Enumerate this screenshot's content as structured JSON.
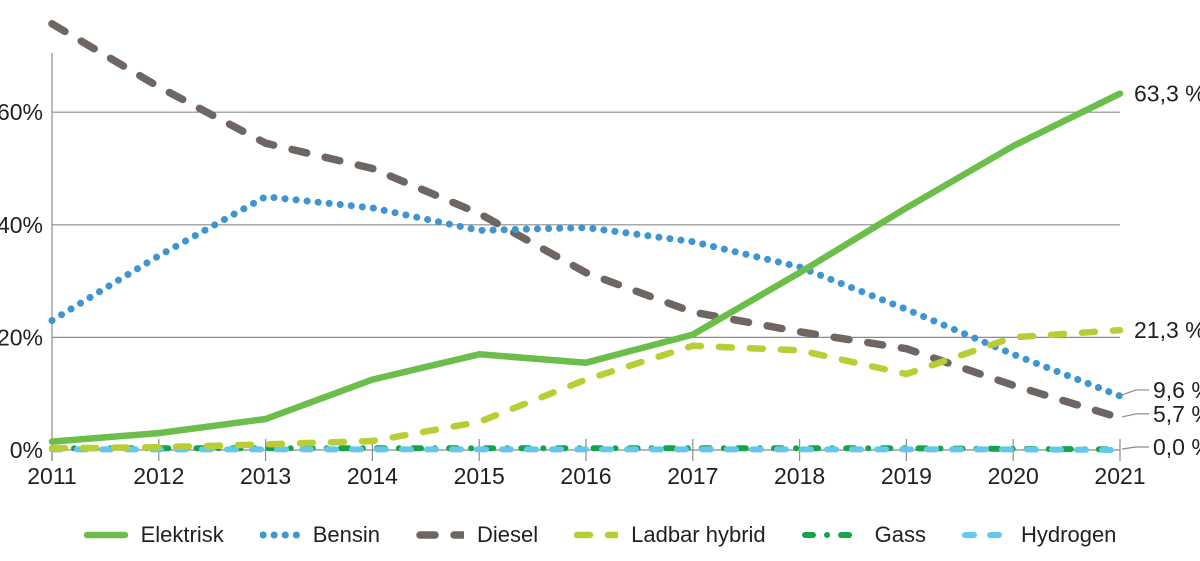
{
  "chart_data": {
    "type": "line",
    "title": "",
    "xlabel": "",
    "ylabel": "",
    "x_labels": [
      "2011",
      "2012",
      "2013",
      "2014",
      "2015",
      "2016",
      "2017",
      "2018",
      "2019",
      "2020",
      "2021"
    ],
    "y_ticks": [
      {
        "value": 0,
        "label": "0%"
      },
      {
        "value": 20,
        "label": "20%"
      },
      {
        "value": 40,
        "label": "40%"
      },
      {
        "value": 60,
        "label": "60%"
      }
    ],
    "ylim": [
      0,
      77
    ],
    "grid": true,
    "legend_position": "bottom",
    "series": [
      {
        "name": "Elektrisk",
        "color": "#6CBE4B",
        "style": "solid",
        "z": 6,
        "end_label": "63,3 %",
        "leader": false,
        "label_dy": 0,
        "values": [
          1.5,
          3.0,
          5.5,
          12.5,
          17.0,
          15.5,
          20.5,
          31.5,
          43.0,
          54.0,
          63.3
        ]
      },
      {
        "name": "Bensin",
        "color": "#3D96D2",
        "style": "dots",
        "z": 4,
        "end_label": "9,6 %",
        "leader": true,
        "label_dy": -6,
        "values": [
          23.0,
          34.5,
          45.0,
          43.0,
          39.0,
          39.5,
          37.0,
          32.5,
          25.0,
          17.0,
          9.6
        ]
      },
      {
        "name": "Diesel",
        "color": "#6E6662",
        "style": "dash-lg",
        "z": 3,
        "end_label": "5,7 %",
        "leader": true,
        "label_dy": -4,
        "values": [
          75.7,
          64.5,
          54.5,
          50.0,
          42.0,
          31.5,
          24.5,
          21.0,
          18.0,
          11.5,
          5.7
        ]
      },
      {
        "name": "Ladbar hybrid",
        "color": "#B9CE35",
        "style": "dash-md",
        "z": 5,
        "end_label": "21,3 %",
        "leader": false,
        "label_dy": 0,
        "values": [
          0.3,
          0.5,
          1.0,
          1.6,
          5.0,
          12.5,
          18.5,
          17.7,
          13.5,
          20.0,
          21.3
        ]
      },
      {
        "name": "Gass",
        "color": "#14A54B",
        "style": "dash-dot",
        "z": 1,
        "end_label": null,
        "leader": false,
        "label_dy": 0,
        "values": [
          0.3,
          0.3,
          0.3,
          0.3,
          0.3,
          0.3,
          0.3,
          0.3,
          0.3,
          0.2,
          0.1
        ]
      },
      {
        "name": "Hydrogen",
        "color": "#64C8EC",
        "style": "dash-sm",
        "z": 2,
        "end_label": "0,0 %",
        "leader": true,
        "label_dy": -3,
        "values": [
          0.1,
          0.1,
          0.1,
          0.1,
          0.1,
          0.1,
          0.1,
          0.1,
          0.1,
          0.1,
          0.0
        ]
      }
    ]
  }
}
